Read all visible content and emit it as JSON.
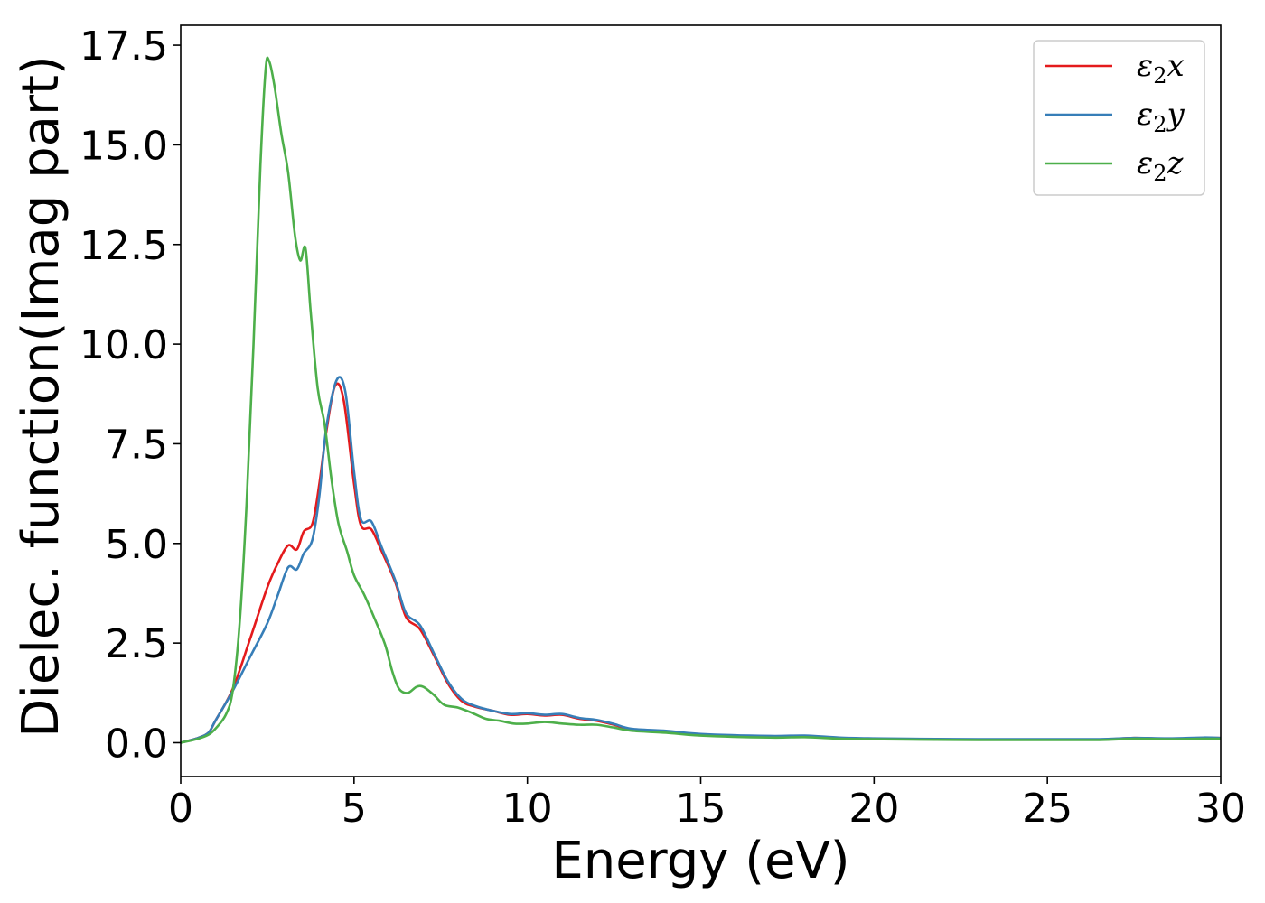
{
  "chart_data": {
    "type": "line",
    "xlabel": "Energy (eV)",
    "ylabel": "Dielec. function(Imag part)",
    "xlim": [
      0,
      30
    ],
    "ylim": [
      -0.85,
      18.0
    ],
    "xticks": [
      0,
      5,
      10,
      15,
      20,
      25,
      30
    ],
    "xtick_labels": [
      "0",
      "5",
      "10",
      "15",
      "20",
      "25",
      "30"
    ],
    "yticks": [
      0.0,
      2.5,
      5.0,
      7.5,
      10.0,
      12.5,
      15.0,
      17.5
    ],
    "ytick_labels": [
      "0.0",
      "2.5",
      "5.0",
      "7.5",
      "10.0",
      "12.5",
      "15.0",
      "17.5"
    ],
    "grid": false,
    "legend_position": "top-right",
    "series": [
      {
        "name": "ε2x",
        "name_base": "ε",
        "name_sub": "2",
        "name_suffix": "x",
        "color": "#e41a1c",
        "points": [
          [
            0,
            0
          ],
          [
            0.5,
            0.12
          ],
          [
            0.8,
            0.25
          ],
          [
            1.0,
            0.55
          ],
          [
            1.5,
            1.35
          ],
          [
            2.0,
            2.6
          ],
          [
            2.5,
            3.9
          ],
          [
            2.8,
            4.5
          ],
          [
            3.1,
            4.95
          ],
          [
            3.35,
            4.85
          ],
          [
            3.55,
            5.3
          ],
          [
            3.8,
            5.5
          ],
          [
            4.0,
            6.5
          ],
          [
            4.2,
            7.8
          ],
          [
            4.45,
            8.95
          ],
          [
            4.7,
            8.6
          ],
          [
            5.0,
            6.5
          ],
          [
            5.2,
            5.45
          ],
          [
            5.5,
            5.35
          ],
          [
            5.8,
            4.8
          ],
          [
            6.2,
            4.0
          ],
          [
            6.5,
            3.15
          ],
          [
            6.9,
            2.85
          ],
          [
            7.3,
            2.2
          ],
          [
            7.7,
            1.5
          ],
          [
            8.1,
            1.05
          ],
          [
            8.5,
            0.9
          ],
          [
            9.0,
            0.8
          ],
          [
            9.5,
            0.7
          ],
          [
            10.0,
            0.72
          ],
          [
            10.5,
            0.68
          ],
          [
            11.0,
            0.7
          ],
          [
            11.5,
            0.6
          ],
          [
            12.0,
            0.55
          ],
          [
            12.5,
            0.45
          ],
          [
            13.0,
            0.33
          ],
          [
            14.0,
            0.28
          ],
          [
            15.0,
            0.2
          ],
          [
            17.0,
            0.15
          ],
          [
            18.0,
            0.17
          ],
          [
            19.0,
            0.12
          ],
          [
            20.0,
            0.1
          ],
          [
            21.0,
            0.09
          ],
          [
            23.0,
            0.08
          ],
          [
            25.0,
            0.08
          ],
          [
            26.5,
            0.08
          ],
          [
            27.5,
            0.12
          ],
          [
            28.5,
            0.1
          ],
          [
            29.5,
            0.12
          ],
          [
            30.0,
            0.12
          ]
        ]
      },
      {
        "name": "ε2y",
        "name_base": "ε",
        "name_sub": "2",
        "name_suffix": "y",
        "color": "#377eb8",
        "points": [
          [
            0,
            0
          ],
          [
            0.5,
            0.12
          ],
          [
            0.8,
            0.25
          ],
          [
            1.0,
            0.55
          ],
          [
            1.5,
            1.3
          ],
          [
            2.0,
            2.15
          ],
          [
            2.5,
            3.0
          ],
          [
            2.8,
            3.7
          ],
          [
            3.1,
            4.4
          ],
          [
            3.35,
            4.35
          ],
          [
            3.55,
            4.75
          ],
          [
            3.8,
            5.1
          ],
          [
            4.0,
            6.2
          ],
          [
            4.2,
            7.9
          ],
          [
            4.5,
            9.1
          ],
          [
            4.75,
            8.8
          ],
          [
            5.0,
            6.8
          ],
          [
            5.2,
            5.6
          ],
          [
            5.5,
            5.55
          ],
          [
            5.8,
            4.9
          ],
          [
            6.2,
            4.05
          ],
          [
            6.5,
            3.25
          ],
          [
            6.9,
            2.95
          ],
          [
            7.3,
            2.25
          ],
          [
            7.7,
            1.55
          ],
          [
            8.1,
            1.1
          ],
          [
            8.5,
            0.92
          ],
          [
            9.0,
            0.8
          ],
          [
            9.5,
            0.72
          ],
          [
            10.0,
            0.74
          ],
          [
            10.5,
            0.7
          ],
          [
            11.0,
            0.72
          ],
          [
            11.5,
            0.62
          ],
          [
            12.0,
            0.57
          ],
          [
            12.5,
            0.47
          ],
          [
            13.0,
            0.35
          ],
          [
            14.0,
            0.3
          ],
          [
            15.0,
            0.22
          ],
          [
            17.0,
            0.17
          ],
          [
            18.0,
            0.18
          ],
          [
            19.0,
            0.13
          ],
          [
            20.0,
            0.11
          ],
          [
            21.0,
            0.1
          ],
          [
            23.0,
            0.09
          ],
          [
            25.0,
            0.09
          ],
          [
            26.5,
            0.09
          ],
          [
            27.5,
            0.12
          ],
          [
            28.5,
            0.11
          ],
          [
            29.5,
            0.13
          ],
          [
            30.0,
            0.12
          ]
        ]
      },
      {
        "name": "ε2z",
        "name_base": "ε",
        "name_sub": "2",
        "name_suffix": "z",
        "color": "#4daf4a",
        "points": [
          [
            0,
            0
          ],
          [
            0.5,
            0.1
          ],
          [
            0.8,
            0.2
          ],
          [
            1.0,
            0.35
          ],
          [
            1.3,
            0.7
          ],
          [
            1.5,
            1.3
          ],
          [
            1.7,
            3.0
          ],
          [
            1.9,
            6.0
          ],
          [
            2.1,
            10.0
          ],
          [
            2.3,
            14.5
          ],
          [
            2.45,
            16.9
          ],
          [
            2.55,
            17.1
          ],
          [
            2.7,
            16.5
          ],
          [
            2.9,
            15.3
          ],
          [
            3.1,
            14.3
          ],
          [
            3.3,
            12.7
          ],
          [
            3.45,
            12.1
          ],
          [
            3.6,
            12.4
          ],
          [
            3.75,
            10.8
          ],
          [
            3.95,
            8.9
          ],
          [
            4.15,
            8.0
          ],
          [
            4.35,
            6.6
          ],
          [
            4.55,
            5.5
          ],
          [
            4.8,
            4.8
          ],
          [
            5.0,
            4.2
          ],
          [
            5.3,
            3.7
          ],
          [
            5.6,
            3.1
          ],
          [
            5.9,
            2.45
          ],
          [
            6.1,
            1.8
          ],
          [
            6.3,
            1.35
          ],
          [
            6.55,
            1.25
          ],
          [
            6.8,
            1.4
          ],
          [
            7.0,
            1.4
          ],
          [
            7.3,
            1.2
          ],
          [
            7.6,
            0.95
          ],
          [
            8.0,
            0.88
          ],
          [
            8.4,
            0.75
          ],
          [
            8.8,
            0.6
          ],
          [
            9.2,
            0.55
          ],
          [
            9.6,
            0.48
          ],
          [
            10.0,
            0.48
          ],
          [
            10.5,
            0.52
          ],
          [
            11.0,
            0.48
          ],
          [
            11.5,
            0.45
          ],
          [
            12.0,
            0.45
          ],
          [
            12.5,
            0.38
          ],
          [
            13.0,
            0.3
          ],
          [
            14.0,
            0.25
          ],
          [
            15.0,
            0.18
          ],
          [
            17.0,
            0.13
          ],
          [
            18.0,
            0.14
          ],
          [
            19.0,
            0.1
          ],
          [
            20.0,
            0.09
          ],
          [
            21.0,
            0.08
          ],
          [
            23.0,
            0.07
          ],
          [
            25.0,
            0.07
          ],
          [
            26.5,
            0.07
          ],
          [
            27.5,
            0.1
          ],
          [
            28.5,
            0.09
          ],
          [
            29.5,
            0.1
          ],
          [
            30.0,
            0.1
          ]
        ]
      }
    ]
  }
}
